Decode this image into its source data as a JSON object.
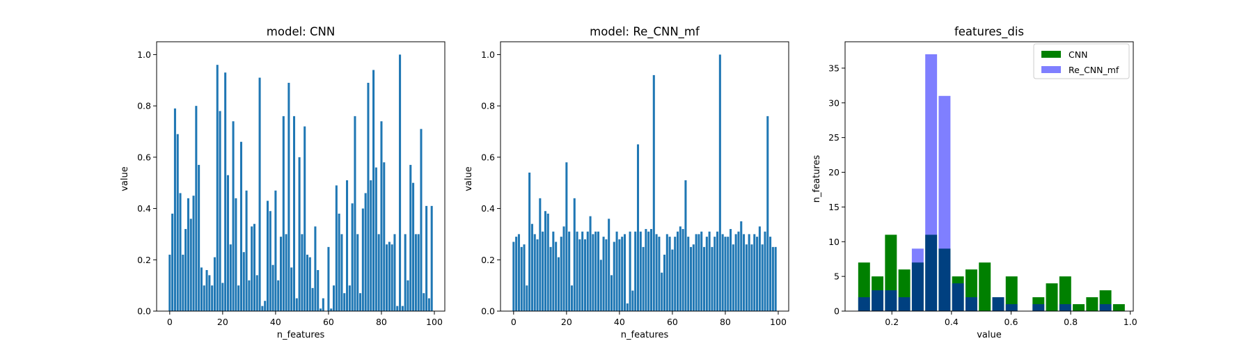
{
  "figure": {
    "background": "#ffffff"
  },
  "chart_data": [
    {
      "type": "bar",
      "title": "model: CNN",
      "xlabel": "n_features",
      "ylabel": "value",
      "color": "#1f77b4",
      "xlim": [
        -4.95,
        103.95
      ],
      "ylim": [
        0,
        1.05
      ],
      "xticks": [
        0,
        20,
        40,
        60,
        80,
        100
      ],
      "yticks": [
        0.0,
        0.2,
        0.4,
        0.6,
        0.8,
        1.0
      ],
      "ytick_labels": [
        "0.0",
        "0.2",
        "0.4",
        "0.6",
        "0.8",
        "1.0"
      ],
      "x": [
        0,
        1,
        2,
        3,
        4,
        5,
        6,
        7,
        8,
        9,
        10,
        11,
        12,
        13,
        14,
        15,
        16,
        17,
        18,
        19,
        20,
        21,
        22,
        23,
        24,
        25,
        26,
        27,
        28,
        29,
        30,
        31,
        32,
        33,
        34,
        35,
        36,
        37,
        38,
        39,
        40,
        41,
        42,
        43,
        44,
        45,
        46,
        47,
        48,
        49,
        50,
        51,
        52,
        53,
        54,
        55,
        56,
        57,
        58,
        59,
        60,
        61,
        62,
        63,
        64,
        65,
        66,
        67,
        68,
        69,
        70,
        71,
        72,
        73,
        74,
        75,
        76,
        77,
        78,
        79,
        80,
        81,
        82,
        83,
        84,
        85,
        86,
        87,
        88,
        89,
        90,
        91,
        92,
        93,
        94,
        95,
        96,
        97,
        98,
        99
      ],
      "values": [
        0.22,
        0.38,
        0.79,
        0.69,
        0.46,
        0.22,
        0.32,
        0.44,
        0.36,
        0.45,
        0.8,
        0.57,
        0.17,
        0.1,
        0.16,
        0.14,
        0.1,
        0.21,
        0.96,
        0.78,
        0.11,
        0.93,
        0.53,
        0.26,
        0.74,
        0.44,
        0.1,
        0.66,
        0.23,
        0.47,
        0.12,
        0.33,
        0.34,
        0.14,
        0.91,
        0.02,
        0.04,
        0.43,
        0.39,
        0.18,
        0.47,
        0.12,
        0.29,
        0.76,
        0.3,
        0.89,
        0.17,
        0.76,
        0.05,
        0.6,
        0.3,
        0.72,
        0.22,
        0.21,
        0.09,
        0.33,
        0.16,
        0.01,
        0.05,
        0.0,
        0.25,
        0.01,
        0.1,
        0.49,
        0.38,
        0.3,
        0.07,
        0.51,
        0.1,
        0.42,
        0.76,
        0.3,
        0.07,
        0.4,
        0.46,
        0.89,
        0.51,
        0.94,
        0.56,
        0.3,
        0.74,
        0.58,
        0.26,
        0.27,
        0.26,
        0.3,
        0.02,
        1.0,
        0.02,
        0.3,
        0.12,
        0.57,
        0.5,
        0.3,
        0.3,
        0.71,
        0.07,
        0.41,
        0.05,
        0.41
      ]
    },
    {
      "type": "bar",
      "title": "model: Re_CNN_mf",
      "xlabel": "n_features",
      "ylabel": "value",
      "color": "#1f77b4",
      "xlim": [
        -4.95,
        103.95
      ],
      "ylim": [
        0,
        1.05
      ],
      "xticks": [
        0,
        20,
        40,
        60,
        80,
        100
      ],
      "yticks": [
        0.0,
        0.2,
        0.4,
        0.6,
        0.8,
        1.0
      ],
      "ytick_labels": [
        "0.0",
        "0.2",
        "0.4",
        "0.6",
        "0.8",
        "1.0"
      ],
      "x": [
        0,
        1,
        2,
        3,
        4,
        5,
        6,
        7,
        8,
        9,
        10,
        11,
        12,
        13,
        14,
        15,
        16,
        17,
        18,
        19,
        20,
        21,
        22,
        23,
        24,
        25,
        26,
        27,
        28,
        29,
        30,
        31,
        32,
        33,
        34,
        35,
        36,
        37,
        38,
        39,
        40,
        41,
        42,
        43,
        44,
        45,
        46,
        47,
        48,
        49,
        50,
        51,
        52,
        53,
        54,
        55,
        56,
        57,
        58,
        59,
        60,
        61,
        62,
        63,
        64,
        65,
        66,
        67,
        68,
        69,
        70,
        71,
        72,
        73,
        74,
        75,
        76,
        77,
        78,
        79,
        80,
        81,
        82,
        83,
        84,
        85,
        86,
        87,
        88,
        89,
        90,
        91,
        92,
        93,
        94,
        95,
        96,
        97,
        98,
        99
      ],
      "values": [
        0.27,
        0.29,
        0.3,
        0.25,
        0.26,
        0.1,
        0.54,
        0.34,
        0.3,
        0.28,
        0.44,
        0.31,
        0.39,
        0.38,
        0.25,
        0.31,
        0.27,
        0.21,
        0.29,
        0.33,
        0.58,
        0.31,
        0.1,
        0.44,
        0.31,
        0.28,
        0.31,
        0.28,
        0.31,
        0.37,
        0.3,
        0.31,
        0.31,
        0.2,
        0.29,
        0.28,
        0.36,
        0.14,
        0.27,
        0.31,
        0.28,
        0.29,
        0.3,
        0.03,
        0.31,
        0.08,
        0.31,
        0.65,
        0.31,
        0.25,
        0.32,
        0.31,
        0.32,
        0.92,
        0.3,
        0.29,
        0.15,
        0.22,
        0.3,
        0.29,
        0.24,
        0.29,
        0.31,
        0.33,
        0.32,
        0.51,
        0.29,
        0.25,
        0.26,
        0.3,
        0.3,
        0.31,
        0.25,
        0.29,
        0.31,
        0.25,
        0.29,
        0.31,
        1.0,
        0.3,
        0.29,
        0.29,
        0.32,
        0.26,
        0.3,
        0.31,
        0.35,
        0.3,
        0.26,
        0.3,
        0.26,
        0.3,
        0.29,
        0.33,
        0.26,
        0.31,
        0.76,
        0.29,
        0.25,
        0.25
      ],
      "note_x_offset": 0
    },
    {
      "type": "bar",
      "title": "features_dis",
      "xlabel": "value",
      "ylabel": "n_features",
      "xlim": [
        0.043,
        1.01
      ],
      "ylim": [
        0,
        38.8
      ],
      "xticks": [
        0.2,
        0.4,
        0.6,
        0.8,
        1.0
      ],
      "xtick_labels": [
        "0.2",
        "0.4",
        "0.6",
        "0.8",
        "1.0"
      ],
      "yticks": [
        0,
        5,
        10,
        15,
        20,
        25,
        30,
        35
      ],
      "ytick_labels": [
        "0",
        "5",
        "10",
        "15",
        "20",
        "25",
        "30",
        "35"
      ],
      "bin_width": 0.0396,
      "bin_starts": [
        0.087,
        0.132,
        0.177,
        0.222,
        0.267,
        0.312,
        0.357,
        0.402,
        0.447,
        0.492,
        0.537,
        0.582,
        0.627,
        0.672,
        0.717,
        0.762,
        0.807,
        0.852,
        0.897,
        0.942
      ],
      "legend": {
        "placement": "top-right",
        "items": [
          "CNN",
          "Re_CNN_mf"
        ]
      },
      "series": [
        {
          "name": "CNN",
          "color": "#008000",
          "opacity": 1.0,
          "values": [
            7,
            5,
            11,
            6,
            7,
            11,
            9,
            5,
            6,
            7,
            2,
            5,
            0,
            2,
            4,
            5,
            1,
            2,
            3,
            1
          ]
        },
        {
          "name": "Re_CNN_mf",
          "color": "#0000ff",
          "opacity": 0.5,
          "values": [
            2,
            3,
            3,
            2,
            9,
            37,
            31,
            4,
            2,
            0,
            2,
            1,
            0,
            1,
            0,
            1,
            0,
            0,
            1,
            0
          ]
        }
      ]
    }
  ]
}
